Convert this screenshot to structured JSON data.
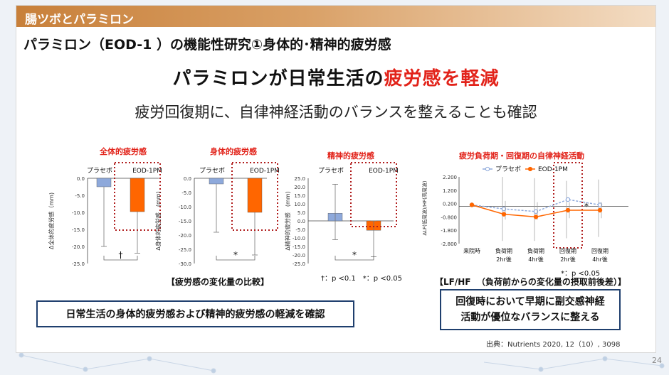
{
  "header": {
    "section": "腸ツボとパラミロン"
  },
  "subtitle": "パラミロン（EOD-1 ）の機能性研究①身体的･精神的疲労感",
  "headline": {
    "pre": "パラミロンが日常生活の",
    "highlight": "疲労感を軽減"
  },
  "lead": "疲労回復期に、自律神経活動のバランスを整えることも確認",
  "captions": {
    "fatigue": "【疲労感の変化量の比較】",
    "lfhf_a": "【LF/HF",
    "lfhf_b": "（負荷前からの変化量の摂取前後差）】"
  },
  "notes": {
    "sig_left": "†：p <0.1　*：p <0.05",
    "sig_right": "*：p <0.05"
  },
  "conclusions": {
    "left": "日常生活の身体的疲労感および精神的疲労感の軽減を確認",
    "right_line1": "回復時において早期に副交感神経",
    "right_line2": "活動が優位なバランスに整える"
  },
  "source": "出典：Nutrients 2020, 12（10）, 3098",
  "page_number": "24",
  "colors": {
    "placebo": "#8ea9db",
    "eod": "#ff6600",
    "accent_red": "#e2231a",
    "dotted_box": "#b01c1c",
    "border": "#1f3f6e"
  },
  "chart_data": [
    {
      "type": "bar",
      "title": "全体的疲労感",
      "ylabel": "Δ全体的疲労感（mm)",
      "ylim": [
        -25,
        0
      ],
      "yticks": [
        "0.0",
        "-5.0",
        "-10.0",
        "-15.0",
        "-20.0",
        "-25.0"
      ],
      "categories": [
        "プラセボ",
        "EOD-1PM"
      ],
      "values": [
        -2.5,
        -9.8
      ],
      "error_low": [
        -20.0,
        -22.0
      ],
      "significance": "†"
    },
    {
      "type": "bar",
      "title": "身体的疲労感",
      "ylabel": "Δ身体的疲労感　(mm)",
      "ylim": [
        -30,
        0
      ],
      "yticks": [
        "0.0",
        "-5.0",
        "-10.0",
        "-15.0",
        "-20.0",
        "-25.0",
        "-30.0"
      ],
      "categories": [
        "プラセボ",
        "EOD-1PM"
      ],
      "values": [
        -2.0,
        -12.0
      ],
      "error_low": [
        -19.0,
        -27.0
      ],
      "significance": "*"
    },
    {
      "type": "bar",
      "title": "精神的疲労感",
      "ylabel": "Δ精神的疲労感　(mm)",
      "ylim": [
        -25,
        25
      ],
      "yticks": [
        "25.0",
        "20.0",
        "15.0",
        "10.0",
        "5.0",
        "0.0",
        "-5.0",
        "-10.0",
        "-15.0",
        "-20.0",
        "-25.0"
      ],
      "categories": [
        "プラセボ",
        "EOD-1PM"
      ],
      "values": [
        4.5,
        -5.5
      ],
      "error_high": [
        21.5,
        0
      ],
      "error_low": [
        -11.0,
        -21.0
      ],
      "significance": "*"
    },
    {
      "type": "line",
      "title": "疲労負荷期・回復期の自律神経活動",
      "ylabel": "ΔLF(低周波)/HF(高周波)",
      "ylim": [
        -2.8,
        2.2
      ],
      "yticks": [
        "2.200",
        "1.200",
        "0.200",
        "-0.800",
        "-1.800",
        "-2.800"
      ],
      "x": [
        "来院時",
        "負荷期 2hr後",
        "負荷期 4hr後",
        "回復期 2hr後",
        "回復期 4hr後"
      ],
      "series": [
        {
          "name": "プラセボ",
          "values": [
            0.1,
            -0.2,
            -0.4,
            0.5,
            0.1
          ],
          "error_high": [
            0.1,
            2.2,
            2.1,
            1.9,
            2.0
          ],
          "error_low": [
            0.1,
            -2.6,
            -2.6,
            -2.4,
            -2.3
          ]
        },
        {
          "name": "EOD-1PM",
          "values": [
            0.1,
            -0.6,
            -0.8,
            -0.3,
            -0.3
          ],
          "error_high": [
            0.1,
            0.4,
            0.3,
            0.3,
            0.3
          ],
          "error_low": [
            0.1,
            -1.0,
            -1.0,
            -0.9,
            -0.9
          ]
        }
      ],
      "significance": "*",
      "legend": "top"
    }
  ]
}
